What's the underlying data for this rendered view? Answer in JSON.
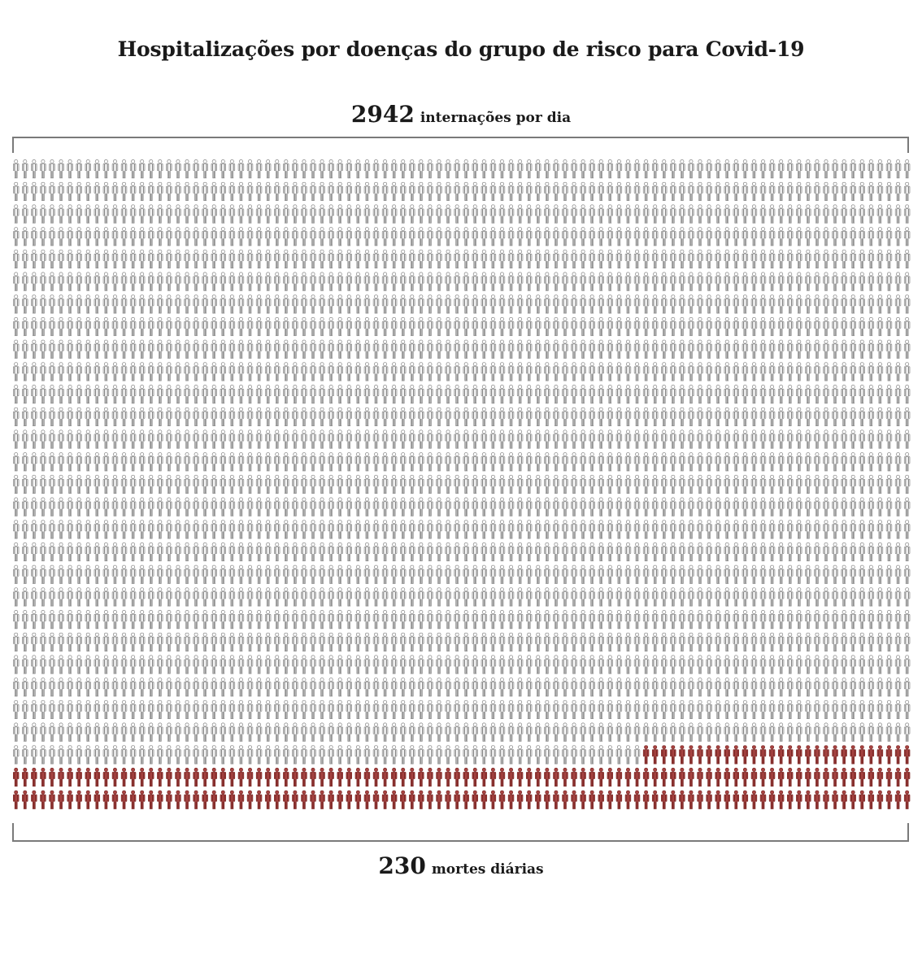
{
  "title": "Hospitalizações por doenças do grupo de risco para Covid-19",
  "top_label": {
    "value": "2942",
    "text": "internações por dia"
  },
  "bottom_label": {
    "value": "230",
    "text": "mortes diárias"
  },
  "chart_data": {
    "type": "pictogram",
    "title": "Hospitalizações por doenças do grupo de risco para Covid-19",
    "series": [
      {
        "name": "internações por dia",
        "value": 2942,
        "icon": "person-icon",
        "fill": "#ffffff",
        "outline": "#8a8a8a"
      },
      {
        "name": "mortes diárias",
        "value": 230,
        "icon": "person-icon",
        "fill": "#a94442",
        "outline": "#7f2b29"
      }
    ],
    "grid": {
      "columns": 100,
      "rows": 29,
      "total_icons": 2900,
      "red_icons": 230,
      "icon": "person-icon",
      "fill_order": "left-to-right, top-to-bottom; red block occupies the last 230 icons (bottom rows)"
    },
    "colors": {
      "plain_fill": "#ffffff",
      "plain_outline": "#8a8a8a",
      "death_fill": "#a94442",
      "death_outline": "#7f2b29",
      "bracket": "#7a7a7a"
    },
    "legend_position": "none",
    "grid_lines": false
  }
}
